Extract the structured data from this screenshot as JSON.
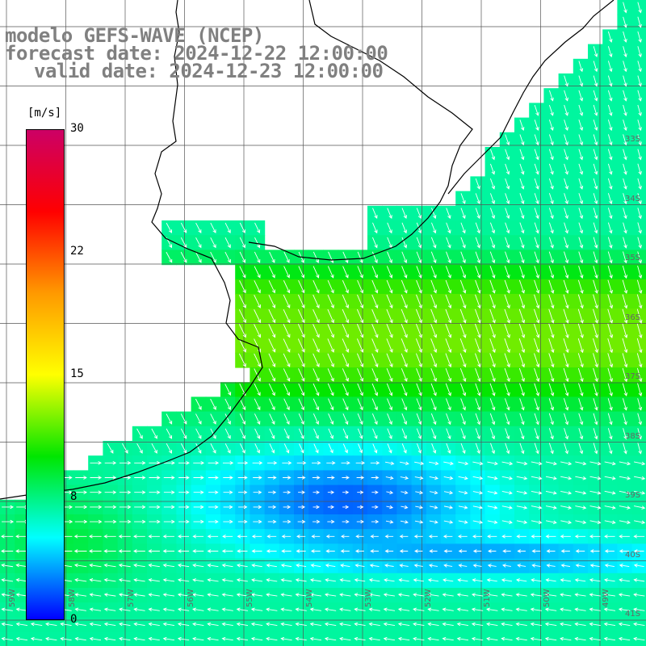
{
  "titles": {
    "model": "modelo GEFS-WAVE (NCEP)",
    "forecast": "forecast date: 2024-12-22 12:00:00",
    "valid": "valid date: 2024-12-23 12:00:00"
  },
  "colorbar": {
    "unit": "[m/s]",
    "ticks": [
      "30",
      "22",
      "15",
      "8",
      "0"
    ],
    "colors": [
      "#cc0066",
      "#ff0000",
      "#ff9900",
      "#ffff00",
      "#00e600",
      "#00ffff",
      "#0000ff"
    ]
  },
  "lat_labels": [
    "33S",
    "34S",
    "35S",
    "36S",
    "37S",
    "38S",
    "39S",
    "40S",
    "41S"
  ],
  "lon_labels": [
    "59W",
    "58W",
    "57W",
    "56W",
    "55W",
    "54W",
    "53W",
    "52W",
    "51W",
    "50W",
    "49W"
  ],
  "colors": {
    "land": "#ffffff",
    "coast": "#000000",
    "grid": "#555555"
  }
}
